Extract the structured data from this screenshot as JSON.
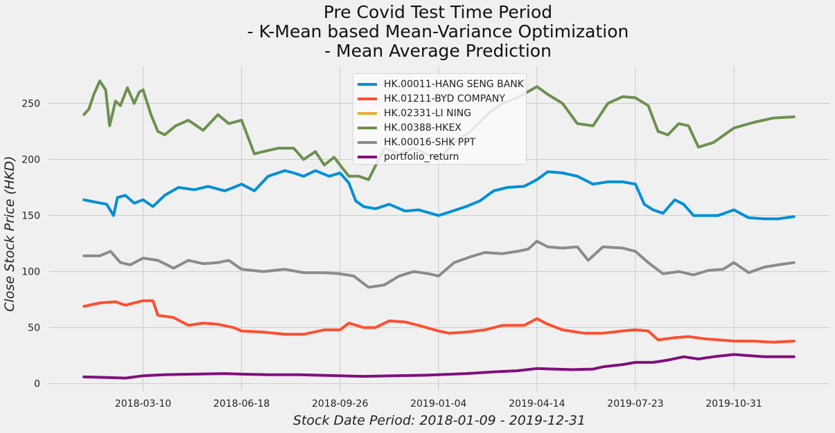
{
  "chart_data": {
    "type": "line",
    "title_lines": [
      "Pre Covid Test Time Period",
      "- K-Mean based Mean-Variance Optimization",
      "- Mean Average Prediction"
    ],
    "xlabel": "Stock Date Period: 2018-01-09 - 2019-12-31",
    "ylabel": "Close Stock Price (HKD)",
    "x_range": [
      "2018-01-09",
      "2019-12-31"
    ],
    "x_ticks": [
      "2018-03-10",
      "2018-06-18",
      "2018-09-26",
      "2019-01-04",
      "2019-04-14",
      "2019-07-23",
      "2019-10-31"
    ],
    "y_ticks": [
      0,
      50,
      100,
      150,
      200,
      250
    ],
    "ylim": [
      -7,
      283
    ],
    "grid": true,
    "legend_position": "top-center",
    "series": [
      {
        "name": "HK.00011-HANG SENG BANK",
        "color": "#008fd5",
        "x": [
          "2018-01-09",
          "2018-01-20",
          "2018-02-01",
          "2018-02-08",
          "2018-02-12",
          "2018-02-20",
          "2018-03-01",
          "2018-03-10",
          "2018-03-20",
          "2018-04-01",
          "2018-04-15",
          "2018-05-01",
          "2018-05-15",
          "2018-06-01",
          "2018-06-10",
          "2018-06-18",
          "2018-07-01",
          "2018-07-15",
          "2018-08-01",
          "2018-08-10",
          "2018-08-20",
          "2018-09-01",
          "2018-09-15",
          "2018-09-26",
          "2018-10-05",
          "2018-10-12",
          "2018-10-20",
          "2018-11-01",
          "2018-11-15",
          "2018-12-01",
          "2018-12-15",
          "2019-01-04",
          "2019-01-15",
          "2019-02-01",
          "2019-02-15",
          "2019-03-01",
          "2019-03-15",
          "2019-04-01",
          "2019-04-14",
          "2019-04-25",
          "2019-05-10",
          "2019-05-25",
          "2019-06-10",
          "2019-06-25",
          "2019-07-10",
          "2019-07-23",
          "2019-08-01",
          "2019-08-10",
          "2019-08-20",
          "2019-09-01",
          "2019-09-10",
          "2019-09-20",
          "2019-10-01",
          "2019-10-15",
          "2019-10-31",
          "2019-11-15",
          "2019-12-01",
          "2019-12-15",
          "2019-12-31"
        ],
        "values": [
          164,
          162,
          160,
          150,
          166,
          168,
          161,
          164,
          158,
          168,
          175,
          173,
          176,
          172,
          175,
          178,
          172,
          185,
          190,
          188,
          185,
          190,
          185,
          188,
          179,
          163,
          158,
          156,
          160,
          154,
          155,
          150,
          153,
          158,
          163,
          172,
          175,
          176,
          182,
          189,
          188,
          185,
          178,
          180,
          180,
          178,
          160,
          155,
          152,
          164,
          160,
          150,
          150,
          150,
          155,
          148,
          147,
          147,
          149
        ]
      },
      {
        "name": "HK.01211-BYD COMPANY",
        "color": "#fc4f30",
        "x": [
          "2018-01-09",
          "2018-01-25",
          "2018-02-10",
          "2018-02-20",
          "2018-03-10",
          "2018-03-20",
          "2018-03-25",
          "2018-04-10",
          "2018-04-25",
          "2018-05-10",
          "2018-05-25",
          "2018-06-10",
          "2018-06-18",
          "2018-07-10",
          "2018-08-01",
          "2018-08-20",
          "2018-09-10",
          "2018-09-26",
          "2018-10-05",
          "2018-10-20",
          "2018-11-01",
          "2018-11-15",
          "2018-12-01",
          "2018-12-15",
          "2019-01-04",
          "2019-01-15",
          "2019-02-01",
          "2019-02-20",
          "2019-03-10",
          "2019-04-01",
          "2019-04-14",
          "2019-04-25",
          "2019-05-10",
          "2019-06-01",
          "2019-06-20",
          "2019-07-10",
          "2019-07-23",
          "2019-08-05",
          "2019-08-15",
          "2019-09-01",
          "2019-09-15",
          "2019-10-01",
          "2019-10-31",
          "2019-11-20",
          "2019-12-10",
          "2019-12-31"
        ],
        "values": [
          69,
          72,
          73,
          70,
          74,
          74,
          61,
          59,
          52,
          54,
          53,
          50,
          47,
          46,
          44,
          44,
          48,
          48,
          54,
          50,
          50,
          56,
          55,
          52,
          47,
          45,
          46,
          48,
          52,
          52,
          58,
          53,
          48,
          45,
          45,
          47,
          48,
          47,
          39,
          41,
          42,
          40,
          38,
          38,
          37,
          38
        ]
      },
      {
        "name": "HK.02331-LI NING",
        "color": "#e5ae38",
        "x": [],
        "values": []
      },
      {
        "name": "HK.00388-HKEX",
        "color": "#6d904f",
        "x": [
          "2018-01-09",
          "2018-01-14",
          "2018-01-19",
          "2018-01-25",
          "2018-01-31",
          "2018-02-04",
          "2018-02-10",
          "2018-02-15",
          "2018-02-22",
          "2018-03-01",
          "2018-03-06",
          "2018-03-10",
          "2018-03-18",
          "2018-03-25",
          "2018-04-01",
          "2018-04-12",
          "2018-04-25",
          "2018-05-10",
          "2018-05-25",
          "2018-06-05",
          "2018-06-18",
          "2018-07-01",
          "2018-07-10",
          "2018-07-25",
          "2018-08-10",
          "2018-08-20",
          "2018-09-01",
          "2018-09-10",
          "2018-09-20",
          "2018-09-26",
          "2018-10-05",
          "2018-10-15",
          "2018-10-25",
          "2018-11-10",
          "2018-11-25",
          "2018-12-10",
          "2019-01-04",
          "2019-01-20",
          "2019-02-05",
          "2019-02-25",
          "2019-03-10",
          "2019-03-25",
          "2019-04-14",
          "2019-04-25",
          "2019-05-10",
          "2019-05-25",
          "2019-06-10",
          "2019-06-25",
          "2019-07-10",
          "2019-07-23",
          "2019-08-05",
          "2019-08-15",
          "2019-08-25",
          "2019-09-05",
          "2019-09-15",
          "2019-09-25",
          "2019-10-10",
          "2019-10-31",
          "2019-11-20",
          "2019-12-10",
          "2019-12-31"
        ],
        "values": [
          240,
          245,
          258,
          270,
          262,
          230,
          252,
          248,
          264,
          250,
          260,
          262,
          240,
          225,
          222,
          230,
          235,
          226,
          240,
          232,
          235,
          205,
          207,
          210,
          210,
          200,
          207,
          195,
          202,
          195,
          185,
          185,
          182,
          210,
          205,
          210,
          200,
          215,
          225,
          242,
          250,
          255,
          265,
          258,
          250,
          232,
          230,
          250,
          256,
          255,
          248,
          225,
          222,
          232,
          230,
          211,
          215,
          228,
          233,
          237,
          238
        ]
      },
      {
        "name": "HK.00016-SHK PPT",
        "color": "#8b8b8b",
        "x": [
          "2018-01-09",
          "2018-01-25",
          "2018-02-05",
          "2018-02-15",
          "2018-02-25",
          "2018-03-10",
          "2018-03-25",
          "2018-04-10",
          "2018-04-25",
          "2018-05-10",
          "2018-05-25",
          "2018-06-05",
          "2018-06-18",
          "2018-07-10",
          "2018-08-01",
          "2018-08-20",
          "2018-09-10",
          "2018-09-26",
          "2018-10-10",
          "2018-10-25",
          "2018-11-10",
          "2018-11-25",
          "2018-12-10",
          "2018-12-25",
          "2019-01-04",
          "2019-01-20",
          "2019-02-05",
          "2019-02-20",
          "2019-03-10",
          "2019-03-25",
          "2019-04-05",
          "2019-04-14",
          "2019-04-25",
          "2019-05-10",
          "2019-05-25",
          "2019-06-05",
          "2019-06-20",
          "2019-07-10",
          "2019-07-23",
          "2019-08-05",
          "2019-08-20",
          "2019-09-05",
          "2019-09-20",
          "2019-10-05",
          "2019-10-20",
          "2019-10-31",
          "2019-11-15",
          "2019-12-01",
          "2019-12-15",
          "2019-12-31"
        ],
        "values": [
          114,
          114,
          118,
          108,
          106,
          112,
          110,
          103,
          110,
          107,
          108,
          110,
          102,
          100,
          102,
          99,
          99,
          98,
          96,
          86,
          88,
          96,
          100,
          98,
          96,
          108,
          113,
          117,
          116,
          118,
          120,
          127,
          122,
          121,
          122,
          110,
          122,
          121,
          118,
          108,
          98,
          100,
          97,
          101,
          102,
          108,
          99,
          104,
          106,
          108
        ]
      },
      {
        "name": "portfolio_return",
        "color": "#810f7c",
        "x": [
          "2018-01-09",
          "2018-02-01",
          "2018-02-20",
          "2018-03-10",
          "2018-04-01",
          "2018-05-01",
          "2018-06-01",
          "2018-06-18",
          "2018-07-15",
          "2018-08-15",
          "2018-09-26",
          "2018-10-20",
          "2018-11-20",
          "2018-12-20",
          "2019-01-04",
          "2019-02-01",
          "2019-03-01",
          "2019-03-25",
          "2019-04-14",
          "2019-05-01",
          "2019-05-20",
          "2019-06-10",
          "2019-06-20",
          "2019-07-10",
          "2019-07-23",
          "2019-08-10",
          "2019-08-25",
          "2019-09-10",
          "2019-09-25",
          "2019-10-10",
          "2019-10-31",
          "2019-11-15",
          "2019-12-01",
          "2019-12-31"
        ],
        "values": [
          6,
          5.5,
          5,
          7,
          8,
          8.5,
          9,
          8.5,
          8,
          8,
          7,
          6.5,
          7,
          7.5,
          8,
          9,
          10.5,
          11.5,
          13.5,
          13,
          12.5,
          13,
          15,
          17,
          19,
          19,
          21,
          24,
          22,
          24,
          26,
          25,
          24,
          24
        ]
      }
    ]
  }
}
